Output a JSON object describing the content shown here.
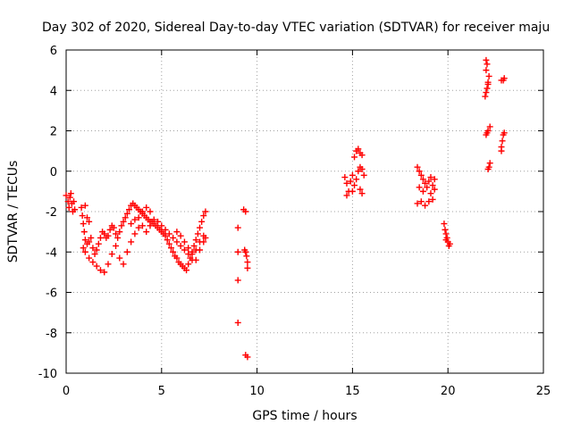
{
  "chart_data": {
    "type": "scatter",
    "title": "Day 302 of 2020, Sidereal Day-to-day VTEC variation (SDTVAR) for receiver maju",
    "xlabel": "GPS time / hours",
    "ylabel": "SDTVAR / TECUs",
    "xlim": [
      0,
      25
    ],
    "ylim": [
      -10,
      6
    ],
    "xticks": [
      0,
      5,
      10,
      15,
      20,
      25
    ],
    "yticks": [
      -10,
      -8,
      -6,
      -4,
      -2,
      0,
      2,
      4,
      6
    ],
    "xtick_labels": [
      "0",
      "5",
      "10",
      "15",
      "20",
      "25"
    ],
    "ytick_labels": [
      "-10",
      "-8",
      "-6",
      "-4",
      "-2",
      "0",
      "2",
      "4",
      "6"
    ],
    "grid": true,
    "marker": "+",
    "series": [
      {
        "name": "SDTVAR",
        "color": "#ff0000",
        "points": [
          [
            0.0,
            -1.2
          ],
          [
            0.1,
            -1.5
          ],
          [
            0.15,
            -1.8
          ],
          [
            0.2,
            -1.3
          ],
          [
            0.25,
            -1.1
          ],
          [
            0.3,
            -1.6
          ],
          [
            0.35,
            -2.0
          ],
          [
            0.4,
            -1.5
          ],
          [
            0.45,
            -1.9
          ],
          [
            0.8,
            -1.8
          ],
          [
            0.85,
            -2.2
          ],
          [
            0.9,
            -2.6
          ],
          [
            0.95,
            -3.0
          ],
          [
            1.0,
            -3.4
          ],
          [
            1.1,
            -3.6
          ],
          [
            1.2,
            -3.5
          ],
          [
            1.3,
            -3.3
          ],
          [
            1.4,
            -3.8
          ],
          [
            1.5,
            -4.1
          ],
          [
            1.6,
            -3.9
          ],
          [
            1.7,
            -3.6
          ],
          [
            1.8,
            -3.3
          ],
          [
            1.9,
            -3.0
          ],
          [
            2.0,
            -3.1
          ],
          [
            2.1,
            -3.3
          ],
          [
            2.2,
            -3.2
          ],
          [
            2.3,
            -2.9
          ],
          [
            2.4,
            -2.7
          ],
          [
            2.5,
            -2.8
          ],
          [
            2.6,
            -3.1
          ],
          [
            2.7,
            -3.3
          ],
          [
            2.8,
            -3.0
          ],
          [
            2.9,
            -2.7
          ],
          [
            3.0,
            -2.5
          ],
          [
            3.1,
            -2.3
          ],
          [
            3.2,
            -2.1
          ],
          [
            3.3,
            -1.9
          ],
          [
            3.4,
            -1.7
          ],
          [
            3.5,
            -1.6
          ],
          [
            3.6,
            -1.7
          ],
          [
            3.7,
            -1.8
          ],
          [
            3.8,
            -1.9
          ],
          [
            3.9,
            -2.0
          ],
          [
            4.0,
            -2.1
          ],
          [
            4.1,
            -2.2
          ],
          [
            4.2,
            -2.3
          ],
          [
            4.3,
            -2.4
          ],
          [
            4.4,
            -2.5
          ],
          [
            4.5,
            -2.5
          ],
          [
            4.6,
            -2.6
          ],
          [
            4.7,
            -2.7
          ],
          [
            4.8,
            -2.8
          ],
          [
            4.9,
            -2.9
          ],
          [
            5.0,
            -3.0
          ],
          [
            5.1,
            -3.1
          ],
          [
            5.2,
            -3.2
          ],
          [
            5.3,
            -3.4
          ],
          [
            5.4,
            -3.6
          ],
          [
            5.5,
            -3.8
          ],
          [
            5.6,
            -4.0
          ],
          [
            5.7,
            -4.2
          ],
          [
            5.8,
            -4.3
          ],
          [
            5.9,
            -4.5
          ],
          [
            6.0,
            -4.6
          ],
          [
            6.1,
            -4.7
          ],
          [
            6.2,
            -4.8
          ],
          [
            6.3,
            -4.9
          ],
          [
            6.4,
            -4.6
          ],
          [
            6.5,
            -4.3
          ],
          [
            6.6,
            -4.0
          ],
          [
            6.7,
            -3.7
          ],
          [
            6.8,
            -3.4
          ],
          [
            6.9,
            -3.1
          ],
          [
            7.0,
            -2.8
          ],
          [
            7.1,
            -2.5
          ],
          [
            7.2,
            -2.2
          ],
          [
            7.3,
            -2.0
          ],
          [
            0.9,
            -3.8
          ],
          [
            1.0,
            -4.0
          ],
          [
            1.2,
            -4.3
          ],
          [
            1.4,
            -4.5
          ],
          [
            1.6,
            -4.7
          ],
          [
            1.8,
            -4.9
          ],
          [
            2.0,
            -5.0
          ],
          [
            2.2,
            -4.6
          ],
          [
            2.4,
            -4.1
          ],
          [
            2.6,
            -3.7
          ],
          [
            2.8,
            -4.3
          ],
          [
            3.0,
            -4.6
          ],
          [
            3.2,
            -4.0
          ],
          [
            3.4,
            -3.5
          ],
          [
            3.6,
            -3.1
          ],
          [
            3.8,
            -2.8
          ],
          [
            4.0,
            -2.7
          ],
          [
            4.2,
            -3.0
          ],
          [
            4.4,
            -2.7
          ],
          [
            4.6,
            -2.4
          ],
          [
            4.8,
            -2.5
          ],
          [
            5.0,
            -2.7
          ],
          [
            5.2,
            -2.9
          ],
          [
            5.4,
            -3.1
          ],
          [
            5.6,
            -3.3
          ],
          [
            5.8,
            -3.5
          ],
          [
            6.0,
            -3.7
          ],
          [
            6.2,
            -3.9
          ],
          [
            6.4,
            -4.1
          ],
          [
            6.6,
            -4.4
          ],
          [
            6.8,
            -3.9
          ],
          [
            7.0,
            -3.5
          ],
          [
            7.2,
            -3.2
          ],
          [
            1.0,
            -1.7
          ],
          [
            1.1,
            -2.3
          ],
          [
            1.2,
            -2.5
          ],
          [
            3.4,
            -2.6
          ],
          [
            3.6,
            -2.4
          ],
          [
            3.8,
            -2.3
          ],
          [
            4.0,
            -2.0
          ],
          [
            4.2,
            -1.8
          ],
          [
            4.4,
            -2.0
          ],
          [
            5.8,
            -3.0
          ],
          [
            6.0,
            -3.2
          ],
          [
            6.2,
            -3.5
          ],
          [
            6.4,
            -3.8
          ],
          [
            6.6,
            -4.1
          ],
          [
            6.8,
            -4.4
          ],
          [
            7.0,
            -3.9
          ],
          [
            7.2,
            -3.5
          ],
          [
            7.3,
            -3.3
          ],
          [
            9.0,
            -2.8
          ],
          [
            9.0,
            -4.0
          ],
          [
            9.0,
            -5.4
          ],
          [
            9.0,
            -7.5
          ],
          [
            9.3,
            -1.9
          ],
          [
            9.4,
            -2.0
          ],
          [
            9.4,
            -4.0
          ],
          [
            9.45,
            -4.2
          ],
          [
            9.5,
            -4.5
          ],
          [
            9.5,
            -4.8
          ],
          [
            9.35,
            -3.9
          ],
          [
            9.4,
            -9.1
          ],
          [
            9.5,
            -9.2
          ],
          [
            14.6,
            -0.3
          ],
          [
            14.7,
            -0.6
          ],
          [
            14.8,
            -1.0
          ],
          [
            14.9,
            -0.5
          ],
          [
            15.0,
            -0.2
          ],
          [
            15.1,
            -0.7
          ],
          [
            15.2,
            -0.4
          ],
          [
            15.3,
            0.0
          ],
          [
            15.4,
            0.2
          ],
          [
            15.5,
            0.1
          ],
          [
            15.6,
            -0.2
          ],
          [
            15.1,
            0.7
          ],
          [
            15.2,
            1.0
          ],
          [
            15.3,
            1.1
          ],
          [
            15.4,
            0.9
          ],
          [
            15.5,
            0.8
          ],
          [
            15.4,
            -0.9
          ],
          [
            15.5,
            -1.1
          ],
          [
            14.7,
            -1.2
          ],
          [
            15.0,
            -1.0
          ],
          [
            18.4,
            0.2
          ],
          [
            18.5,
            0.0
          ],
          [
            18.6,
            -0.2
          ],
          [
            18.7,
            -0.4
          ],
          [
            18.8,
            -0.6
          ],
          [
            18.9,
            -0.8
          ],
          [
            19.0,
            -0.5
          ],
          [
            19.1,
            -0.3
          ],
          [
            19.2,
            -0.7
          ],
          [
            19.3,
            -0.9
          ],
          [
            18.4,
            -1.6
          ],
          [
            18.6,
            -1.5
          ],
          [
            18.8,
            -1.7
          ],
          [
            19.0,
            -1.5
          ],
          [
            19.2,
            -1.4
          ],
          [
            18.5,
            -0.8
          ],
          [
            18.7,
            -1.0
          ],
          [
            19.1,
            -1.1
          ],
          [
            19.3,
            -0.4
          ],
          [
            19.8,
            -2.6
          ],
          [
            19.85,
            -2.9
          ],
          [
            19.9,
            -3.1
          ],
          [
            19.95,
            -3.3
          ],
          [
            20.0,
            -3.5
          ],
          [
            20.05,
            -3.7
          ],
          [
            20.1,
            -3.6
          ],
          [
            19.9,
            -3.4
          ],
          [
            22.0,
            5.5
          ],
          [
            22.0,
            5.0
          ],
          [
            22.05,
            5.3
          ],
          [
            22.1,
            4.4
          ],
          [
            22.15,
            4.7
          ],
          [
            21.95,
            3.7
          ],
          [
            22.0,
            3.9
          ],
          [
            22.05,
            4.1
          ],
          [
            22.1,
            4.3
          ],
          [
            22.8,
            4.5
          ],
          [
            22.9,
            4.5
          ],
          [
            22.95,
            4.6
          ],
          [
            22.0,
            1.8
          ],
          [
            22.1,
            2.0
          ],
          [
            22.2,
            2.2
          ],
          [
            22.05,
            1.9
          ],
          [
            22.1,
            0.1
          ],
          [
            22.15,
            0.2
          ],
          [
            22.2,
            0.4
          ],
          [
            22.8,
            1.2
          ],
          [
            22.85,
            1.5
          ],
          [
            22.9,
            1.8
          ],
          [
            22.95,
            1.9
          ],
          [
            22.8,
            1.0
          ]
        ]
      }
    ]
  }
}
